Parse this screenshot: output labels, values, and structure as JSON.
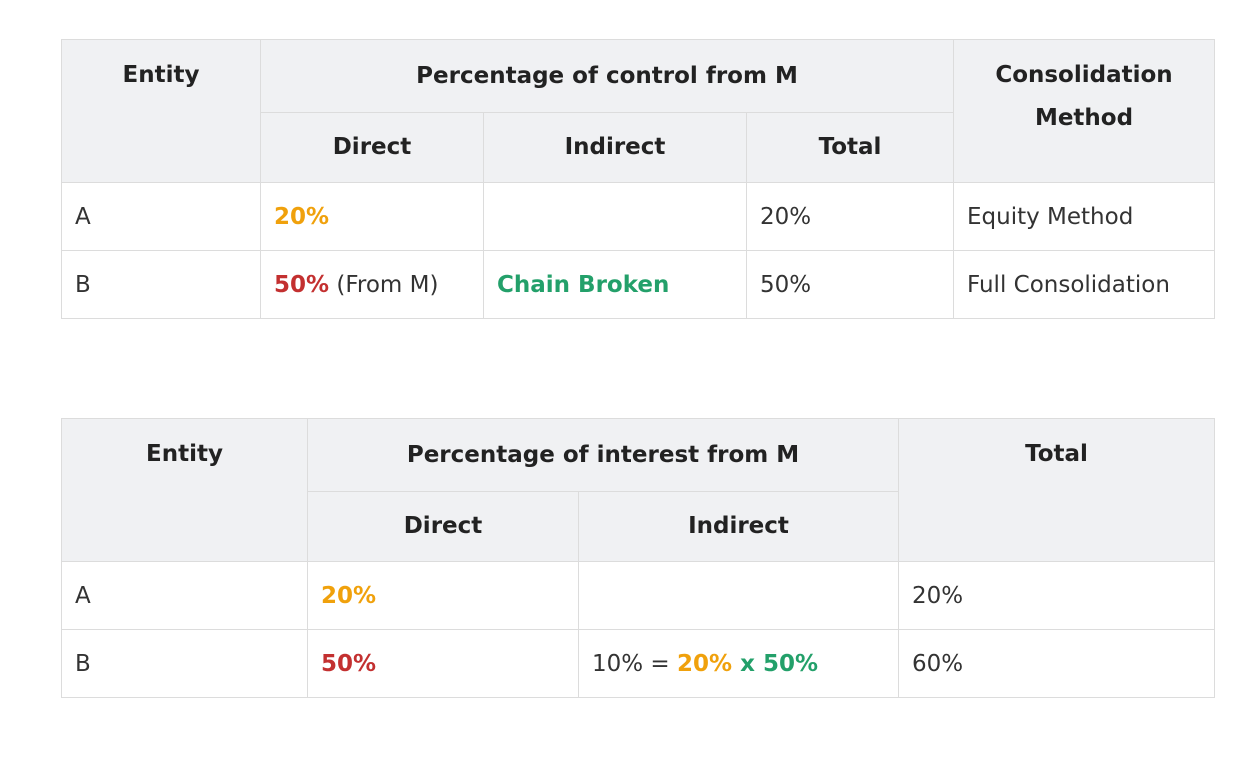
{
  "control_table": {
    "headers": {
      "entity": "Entity",
      "group": "Percentage of control from M",
      "direct": "Direct",
      "indirect": "Indirect",
      "total": "Total",
      "method": "Consolidation Method"
    },
    "rows": [
      {
        "entity": "A",
        "direct_value": "20%",
        "direct_note": "",
        "indirect": "",
        "total": "20%",
        "method": "Equity Method"
      },
      {
        "entity": "B",
        "direct_value": "50%",
        "direct_note": " (From M)",
        "indirect": "Chain Broken",
        "total": "50%",
        "method": "Full Consolidation"
      }
    ]
  },
  "interest_table": {
    "headers": {
      "entity": "Entity",
      "group": "Percentage of interest from M",
      "direct": "Direct",
      "indirect": "Indirect",
      "total": "Total"
    },
    "rows": [
      {
        "entity": "A",
        "direct": "20%",
        "indirect_prefix": "",
        "indirect_a": "",
        "indirect_x": "",
        "indirect_b": "",
        "total": "20%"
      },
      {
        "entity": "B",
        "direct": "50%",
        "indirect_prefix": "10% = ",
        "indirect_a": "20%",
        "indirect_x": " x ",
        "indirect_b": "50%",
        "total": "60%"
      }
    ]
  },
  "colors": {
    "orange": "#f0a10c",
    "red": "#c33030",
    "green": "#23a06a",
    "header_bg": "#f0f1f3",
    "border": "#dcdcdc"
  }
}
